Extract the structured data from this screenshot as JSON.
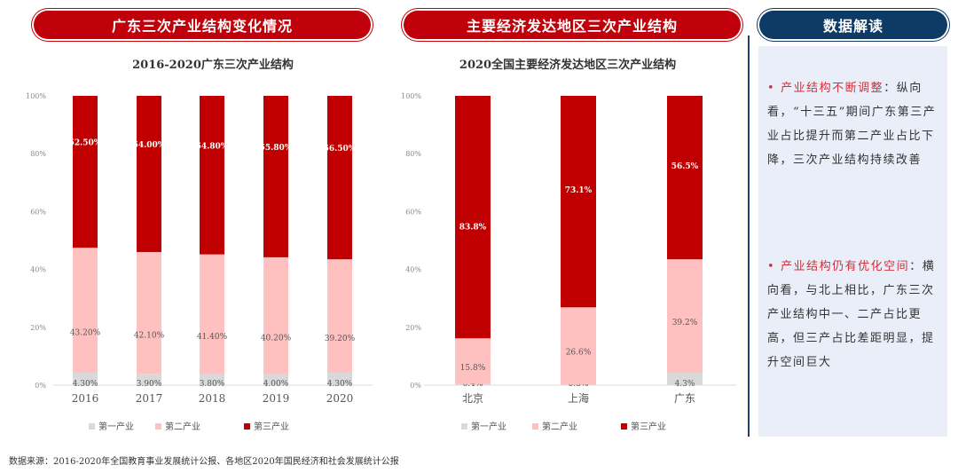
{
  "headers": {
    "left": "广东三次产业结构变化情况",
    "middle": "主要经济发达地区三次产业结构",
    "right": "数据解读"
  },
  "colors": {
    "primary": "#d9d9d9",
    "secondary": "#ffc0c0",
    "tertiary": "#c00000",
    "header_red": "#c0000a",
    "header_blue": "#0e3a66"
  },
  "chart_data": [
    {
      "type": "bar",
      "stacked": true,
      "title": "2016-2020广东三次产业结构",
      "categories": [
        "2016",
        "2017",
        "2018",
        "2019",
        "2020"
      ],
      "series": [
        {
          "name": "第一产业",
          "values": [
            4.3,
            3.9,
            3.8,
            4.0,
            4.3
          ],
          "labels": [
            "4.30%",
            "3.90%",
            "3.80%",
            "4.00%",
            "4.30%"
          ]
        },
        {
          "name": "第二产业",
          "values": [
            43.2,
            42.1,
            41.4,
            40.2,
            39.2
          ],
          "labels": [
            "43.20%",
            "42.10%",
            "41.40%",
            "40.20%",
            "39.20%"
          ]
        },
        {
          "name": "第三产业",
          "values": [
            52.5,
            54.0,
            54.8,
            55.8,
            56.5
          ],
          "labels": [
            "52.50%",
            "54.00%",
            "54.80%",
            "55.80%",
            "56.50%"
          ]
        }
      ],
      "yticks": [
        "0%",
        "20%",
        "40%",
        "60%",
        "80%",
        "100%"
      ],
      "ylim": [
        0,
        100
      ],
      "legend": "bottom"
    },
    {
      "type": "bar",
      "stacked": true,
      "title": "2020全国主要经济发达地区三次产业结构",
      "categories": [
        "北京",
        "上海",
        "广东"
      ],
      "series": [
        {
          "name": "第一产业",
          "values": [
            0.4,
            0.3,
            4.3
          ],
          "labels": [
            "0.4%",
            "0.3%",
            "4.3%"
          ]
        },
        {
          "name": "第二产业",
          "values": [
            15.8,
            26.6,
            39.2
          ],
          "labels": [
            "15.8%",
            "26.6%",
            "39.2%"
          ]
        },
        {
          "name": "第三产业",
          "values": [
            83.8,
            73.1,
            56.5
          ],
          "labels": [
            "83.8%",
            "73.1%",
            "56.5%"
          ]
        }
      ],
      "yticks": [
        "0%",
        "20%",
        "40%",
        "60%",
        "80%",
        "100%"
      ],
      "ylim": [
        0,
        100
      ],
      "legend": "bottom"
    }
  ],
  "analysis": [
    {
      "highlight": "产业结构不断调整",
      "text": "：纵向看，“十三五”期间广东第三产业占比提升而第二产业占比下降，三次产业结构持续改善"
    },
    {
      "highlight": "产业结构仍有优化空间",
      "text": "：横向看，与北上相比，广东三次产业结构中一、二产占比更高，但三产占比差距明显，提升空间巨大"
    }
  ],
  "source": "数据来源：2016-2020年全国教育事业发展统计公报、各地区2020年国民经济和社会发展统计公报"
}
